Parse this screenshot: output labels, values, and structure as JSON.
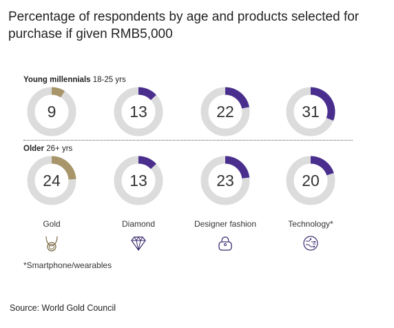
{
  "title": "Percentage of respondents by age and products selected for purchase if given RMB5,000",
  "footnote": "*Smartphone/wearables",
  "source": "Source: World Gold Council",
  "colors": {
    "gold": "#a8956a",
    "purple": "#4a2e8e",
    "track": "#dcdcdc"
  },
  "icons": [
    "necklace-icon",
    "diamond-icon",
    "handbag-icon",
    "circuit-globe-icon"
  ],
  "chart_data": {
    "type": "donut",
    "max": 100,
    "categories": [
      "Gold",
      "Diamond",
      "Designer fashion",
      "Technology*"
    ],
    "groups": [
      {
        "name": "Young millennials",
        "range": "18-25 yrs",
        "values": [
          9,
          13,
          22,
          31
        ]
      },
      {
        "name": "Older",
        "range": "26+ yrs",
        "values": [
          24,
          13,
          23,
          20
        ]
      }
    ]
  }
}
